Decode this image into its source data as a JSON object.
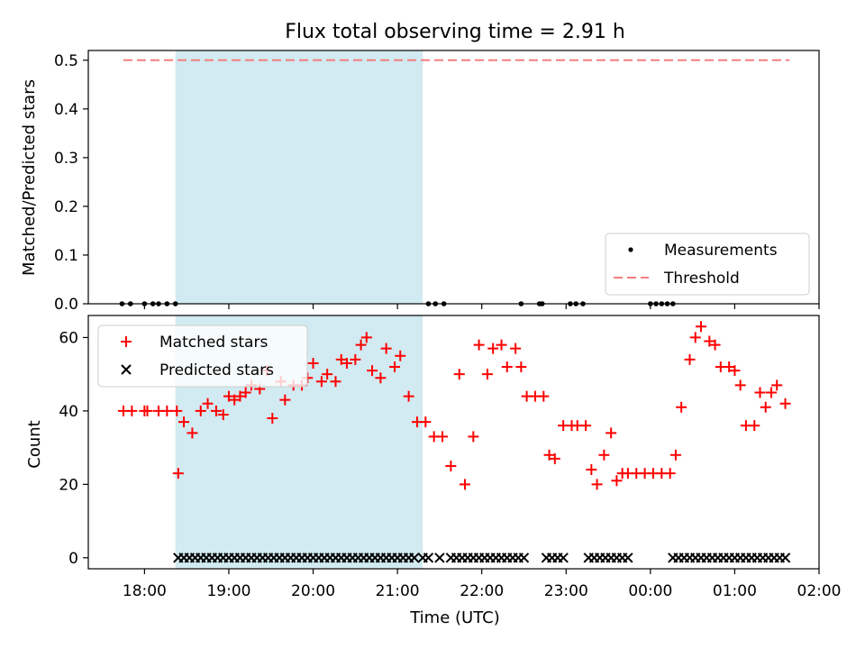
{
  "chart_data": [
    {
      "type": "scatter",
      "title": "Flux total observing time = 2.91 h",
      "ylabel": "Matched/Predicted stars",
      "xlim": [
        "17:20",
        "02:00"
      ],
      "ylim": [
        0,
        0.52
      ],
      "xticks": [
        "18:00",
        "19:00",
        "20:00",
        "21:00",
        "22:00",
        "23:00",
        "00:00",
        "01:00",
        "02:00"
      ],
      "yticks": [
        "0.0",
        "0.1",
        "0.2",
        "0.3",
        "0.4",
        "0.5"
      ],
      "shaded_interval": [
        "18:22",
        "21:18"
      ],
      "shade_color": "#add8e6",
      "legend": {
        "placement": "lower-right",
        "entries": [
          "Measurements",
          "Threshold"
        ]
      },
      "threshold": {
        "name": "Threshold",
        "value": 0.5,
        "x_range": [
          "17:45",
          "01:39"
        ],
        "color": "#f47e7e"
      },
      "series": [
        {
          "name": "Measurements",
          "color": "#000000",
          "x": [
            "17:44",
            "17:50",
            "18:00",
            "18:06",
            "18:10",
            "18:16",
            "18:22",
            "21:22",
            "21:27",
            "21:33",
            "22:28",
            "22:41",
            "22:43",
            "23:03",
            "23:07",
            "23:12",
            "00:00",
            "00:04",
            "00:08",
            "00:12",
            "00:16"
          ],
          "y": [
            0,
            0,
            0,
            0,
            0,
            0,
            0,
            0,
            0,
            0,
            0,
            0,
            0,
            0,
            0,
            0,
            0,
            0,
            0,
            0,
            0
          ]
        }
      ]
    },
    {
      "type": "scatter",
      "xlabel": "Time (UTC)",
      "ylabel": "Count",
      "xlim": [
        "17:20",
        "02:00"
      ],
      "ylim": [
        -3,
        66
      ],
      "xticks": [
        "18:00",
        "19:00",
        "20:00",
        "21:00",
        "22:00",
        "23:00",
        "00:00",
        "01:00",
        "02:00"
      ],
      "yticks": [
        "0",
        "20",
        "40",
        "60"
      ],
      "shaded_interval": [
        "18:22",
        "21:18"
      ],
      "shade_color": "#add8e6",
      "legend": {
        "placement": "upper-left",
        "entries": [
          "Matched stars",
          "Predicted stars"
        ]
      },
      "series": [
        {
          "name": "Matched stars",
          "color": "#ff0000",
          "marker": "+",
          "points": [
            [
              "17:45",
              40
            ],
            [
              "17:51",
              40
            ],
            [
              "18:00",
              40
            ],
            [
              "18:02",
              40
            ],
            [
              "18:10",
              40
            ],
            [
              "18:16",
              40
            ],
            [
              "18:23",
              40
            ],
            [
              "18:24",
              23
            ],
            [
              "18:28",
              37
            ],
            [
              "18:34",
              34
            ],
            [
              "18:40",
              40
            ],
            [
              "18:45",
              42
            ],
            [
              "18:51",
              40
            ],
            [
              "18:56",
              39
            ],
            [
              "19:00",
              44
            ],
            [
              "19:04",
              43
            ],
            [
              "19:08",
              44
            ],
            [
              "19:12",
              45
            ],
            [
              "19:16",
              47
            ],
            [
              "19:22",
              46
            ],
            [
              "19:27",
              51
            ],
            [
              "19:31",
              38
            ],
            [
              "19:37",
              48
            ],
            [
              "19:40",
              43
            ],
            [
              "19:46",
              47
            ],
            [
              "19:52",
              47
            ],
            [
              "19:56",
              49
            ],
            [
              "20:00",
              53
            ],
            [
              "20:06",
              48
            ],
            [
              "20:10",
              50
            ],
            [
              "20:16",
              48
            ],
            [
              "20:20",
              54
            ],
            [
              "20:24",
              53
            ],
            [
              "20:30",
              54
            ],
            [
              "20:34",
              58
            ],
            [
              "20:38",
              60
            ],
            [
              "20:42",
              51
            ],
            [
              "20:48",
              49
            ],
            [
              "20:52",
              57
            ],
            [
              "20:58",
              52
            ],
            [
              "21:02",
              55
            ],
            [
              "21:08",
              44
            ],
            [
              "21:14",
              37
            ],
            [
              "21:20",
              37
            ],
            [
              "21:26",
              33
            ],
            [
              "21:32",
              33
            ],
            [
              "21:38",
              25
            ],
            [
              "21:44",
              50
            ],
            [
              "21:48",
              20
            ],
            [
              "21:54",
              33
            ],
            [
              "21:58",
              58
            ],
            [
              "22:04",
              50
            ],
            [
              "22:08",
              57
            ],
            [
              "22:14",
              58
            ],
            [
              "22:18",
              52
            ],
            [
              "22:24",
              57
            ],
            [
              "22:28",
              52
            ],
            [
              "22:32",
              44
            ],
            [
              "22:38",
              44
            ],
            [
              "22:44",
              44
            ],
            [
              "22:48",
              28
            ],
            [
              "22:52",
              27
            ],
            [
              "22:58",
              36
            ],
            [
              "23:04",
              36
            ],
            [
              "23:08",
              36
            ],
            [
              "23:14",
              36
            ],
            [
              "23:18",
              24
            ],
            [
              "23:22",
              20
            ],
            [
              "23:27",
              28
            ],
            [
              "23:32",
              34
            ],
            [
              "23:36",
              21
            ],
            [
              "23:40",
              23
            ],
            [
              "23:44",
              23
            ],
            [
              "23:50",
              23
            ],
            [
              "23:56",
              23
            ],
            [
              "00:02",
              23
            ],
            [
              "00:08",
              23
            ],
            [
              "00:14",
              23
            ],
            [
              "00:18",
              28
            ],
            [
              "00:22",
              41
            ],
            [
              "00:28",
              54
            ],
            [
              "00:32",
              60
            ],
            [
              "00:36",
              63
            ],
            [
              "00:42",
              59
            ],
            [
              "00:46",
              58
            ],
            [
              "00:50",
              52
            ],
            [
              "00:56",
              52
            ],
            [
              "01:00",
              51
            ],
            [
              "01:04",
              47
            ],
            [
              "01:08",
              36
            ],
            [
              "01:14",
              36
            ],
            [
              "01:18",
              45
            ],
            [
              "01:22",
              41
            ],
            [
              "01:26",
              45
            ],
            [
              "01:30",
              47
            ],
            [
              "01:36",
              42
            ]
          ]
        },
        {
          "name": "Predicted stars",
          "color": "#000000",
          "marker": "x",
          "segments": [
            [
              "18:24",
              "21:14"
            ],
            [
              "21:18",
              "21:24"
            ],
            [
              "21:30",
              "21:30"
            ],
            [
              "21:38",
              "22:32"
            ],
            [
              "22:46",
              "22:58"
            ],
            [
              "23:16",
              "23:46"
            ],
            [
              "00:16",
              "01:38"
            ]
          ],
          "step_minutes": 4,
          "value": 0
        }
      ]
    }
  ]
}
